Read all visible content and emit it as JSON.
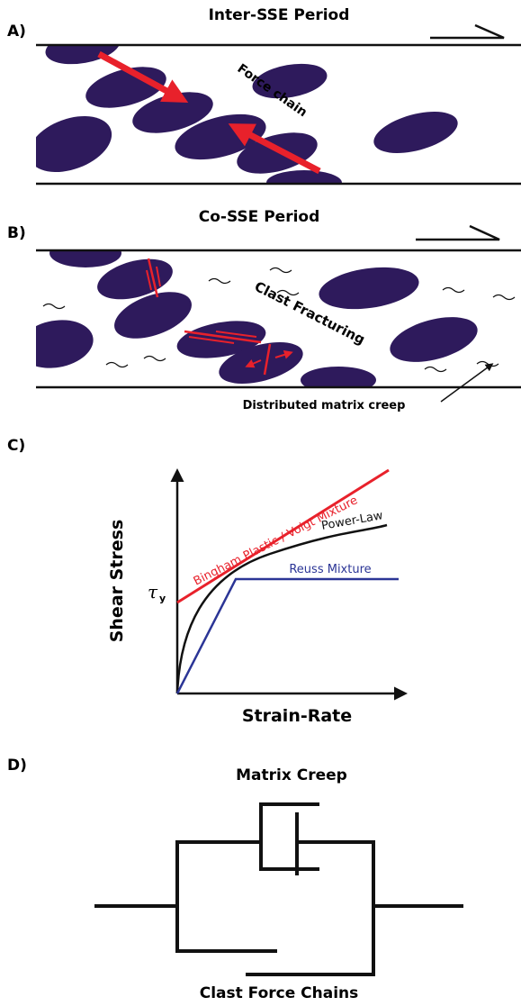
{
  "panel_a": {
    "label": "A)",
    "title": "Inter-SSE Period",
    "annotation": "Force chain"
  },
  "panel_b": {
    "label": "B)",
    "title": "Co-SSE Period",
    "annotation": "Clast Fracturing",
    "arrow_label": "Distributed matrix creep"
  },
  "panel_c": {
    "label": "C)",
    "y_axis": "Shear Stress",
    "x_axis": "Strain-Rate",
    "yield_symbol": "τ",
    "yield_subscript": "y",
    "curves": [
      "Bingham Plastic / Voigt Mixture",
      "Power-Law",
      "Reuss Mixture"
    ]
  },
  "panel_d": {
    "label": "D)",
    "top_label": "Matrix Creep",
    "bottom_label": "Clast Force Chains"
  }
}
